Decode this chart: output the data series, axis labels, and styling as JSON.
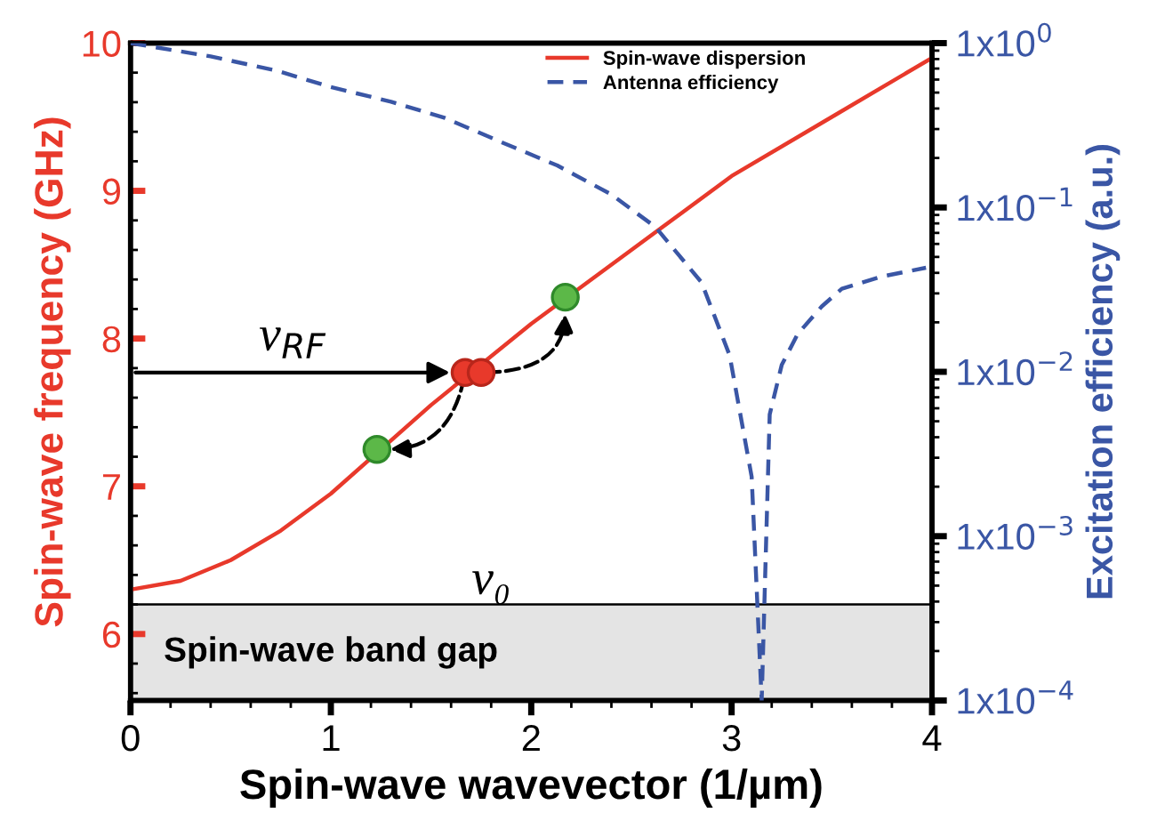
{
  "chart_data": {
    "type": "line",
    "xlabel": "Spin-wave wavevector (1/µm)",
    "ylabel": "Spin-wave frequency (GHz)",
    "y2label": "Excitation efficiency (a.u.)",
    "xlim": [
      0,
      4
    ],
    "xticks": [
      0,
      1,
      2,
      3,
      4
    ],
    "ylim": [
      5.55,
      10
    ],
    "yticks": [
      6,
      7,
      8,
      9,
      10
    ],
    "y2lim": [
      0.0001,
      1
    ],
    "y2ticks": [
      {
        "value": 0.0001,
        "label": "1x10$^{−4}$"
      },
      {
        "value": 0.001,
        "label": "1x10$^{−3}$"
      },
      {
        "value": 0.01,
        "label": "1x10$^{−2}$"
      },
      {
        "value": 0.1,
        "label": "1x10$^{−1}$"
      },
      {
        "value": 1,
        "label": "1x10$^{0}$"
      }
    ],
    "log": "y2",
    "legend": "top right",
    "grid": false,
    "series": [
      {
        "name": "Spin-wave dispersion",
        "color": "#e8392b",
        "line_style": "solid",
        "marker": "none",
        "x": [
          0,
          0.25,
          0.5,
          0.75,
          1.0,
          1.5,
          2.0,
          2.5,
          3.0,
          3.5,
          4.0
        ],
        "values": [
          6.3,
          6.36,
          6.5,
          6.7,
          6.95,
          7.55,
          8.1,
          8.6,
          9.1,
          9.5,
          9.9
        ]
      },
      {
        "name": "Antenna efficiency",
        "color": "#3a56a5",
        "line_style": "dashed",
        "marker": "none",
        "axis": "y2",
        "x": [
          0,
          0.4,
          0.73,
          1.0,
          1.3,
          1.57,
          1.85,
          2.13,
          2.4,
          2.62,
          2.85,
          2.99,
          3.1,
          3.15,
          3.19,
          3.25,
          3.33,
          3.45,
          3.55,
          3.75,
          3.97
        ],
        "values": [
          1,
          0.83,
          0.68,
          0.54,
          0.44,
          0.35,
          0.25,
          0.18,
          0.12,
          0.076,
          0.035,
          0.0126,
          0.0023,
          0.0001,
          0.0055,
          0.011,
          0.017,
          0.025,
          0.032,
          0.038,
          0.043
        ]
      },
      {
        "type": "scatter",
        "color": "#e8392b",
        "marker": "circle",
        "x": [
          1.67,
          1.75
        ],
        "values": [
          7.77,
          7.77
        ]
      },
      {
        "type": "scatter",
        "color": "#5cb848",
        "marker": "circle",
        "x": [
          1.23,
          2.17
        ],
        "values": [
          7.25,
          8.28
        ]
      }
    ],
    "ref_lines": [
      {
        "axis": "y",
        "value": 6.2,
        "label": "ν₀",
        "color": "#000000"
      }
    ],
    "bands": [
      {
        "axis": "y",
        "from": 5.55,
        "to": 6.2,
        "label": "Spin-wave band gap",
        "color": "#e4e4e4"
      }
    ],
    "annotations": [
      {
        "text": "ν$_{RF}$",
        "x": 1.62,
        "y": 7.77
      }
    ]
  }
}
